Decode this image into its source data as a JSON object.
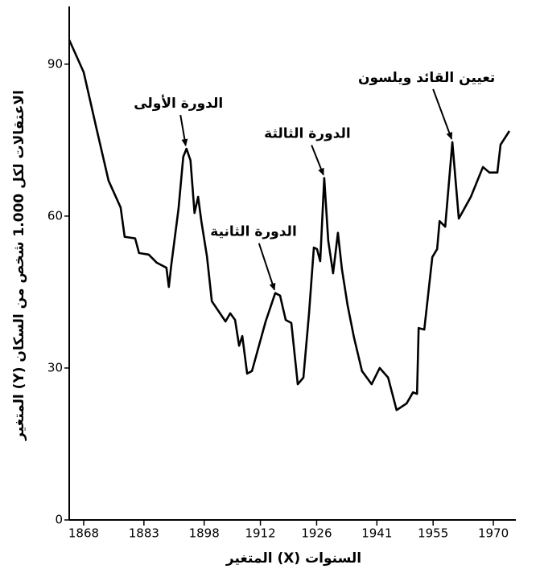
{
  "chart_data": {
    "type": "line",
    "xlabel": "المتغير (X) السنوات",
    "ylabel": "المتغير (Y) الاعتقالات لكل 1.000 شخص من السكان",
    "xlim": [
      1864.4,
      1975.6
    ],
    "ylim": [
      0,
      101.4
    ],
    "xticks": [
      1868,
      1883,
      1898,
      1912,
      1926,
      1941,
      1955,
      1970
    ],
    "yticks": [
      0,
      30,
      60,
      90
    ],
    "grid": false,
    "series": [
      {
        "name": null,
        "color": "#000000",
        "x": [
          1864.4,
          1868,
          1871.2,
          1874.2,
          1877.2,
          1878.2,
          1880.8,
          1881.8,
          1884.2,
          1886.2,
          1888.6,
          1889.2,
          1889.8,
          1891.6,
          1892.8,
          1893.6,
          1894.6,
          1895.6,
          1896.5,
          1897.3,
          1898.7,
          1899.9,
          1903.3,
          1904.5,
          1905.7,
          1906.7,
          1907.5,
          1908.7,
          1909.9,
          1913.3,
          1915.7,
          1916.9,
          1918.3,
          1919.7,
          1921.3,
          1922.7,
          1924.1,
          1925.3,
          1926.1,
          1926.9,
          1927.9,
          1928.9,
          1930.1,
          1931.3,
          1932.3,
          1933.7,
          1935.3,
          1937.3,
          1939.7,
          1941.7,
          1943.8,
          1945.9,
          1948.4,
          1950,
          1951,
          1951.4,
          1952.8,
          1954.8,
          1956,
          1956.6,
          1958,
          1959.8,
          1961.4,
          1964.4,
          1967.4,
          1969,
          1971,
          1971.8,
          1974
        ],
        "values": [
          94.8,
          88.4,
          77.3,
          67,
          61.7,
          55.9,
          55.6,
          52.7,
          52.4,
          50.8,
          49.8,
          46,
          50.3,
          61.4,
          71.7,
          73.3,
          71,
          60.6,
          63.8,
          59,
          52,
          43.2,
          39.2,
          40.8,
          39.5,
          34.4,
          36.3,
          28.9,
          29.4,
          39.2,
          44.8,
          44.3,
          39.5,
          38.9,
          26.8,
          28.1,
          40.8,
          53.8,
          53.5,
          51.1,
          67.5,
          55.1,
          48.7,
          56.7,
          49.5,
          42.4,
          36,
          29.4,
          26.8,
          30,
          28.1,
          21.7,
          23,
          25.2,
          24.9,
          37.9,
          37.6,
          51.9,
          53.5,
          59,
          57.9,
          74.6,
          59.5,
          63.8,
          69.7,
          68.6,
          68.6,
          74.1,
          76.8
        ]
      }
    ],
    "annotations": [
      {
        "text": "الدورة الأولى",
        "x": 1893.6,
        "y": 73.3
      },
      {
        "text": "الدورة الثانية",
        "x": 1915.7,
        "y": 44.8
      },
      {
        "text": "الدورة الثالثة",
        "x": 1927.9,
        "y": 67.5
      },
      {
        "text": "تعيين القائد ويلسون",
        "x": 1959.8,
        "y": 74.6
      }
    ]
  }
}
